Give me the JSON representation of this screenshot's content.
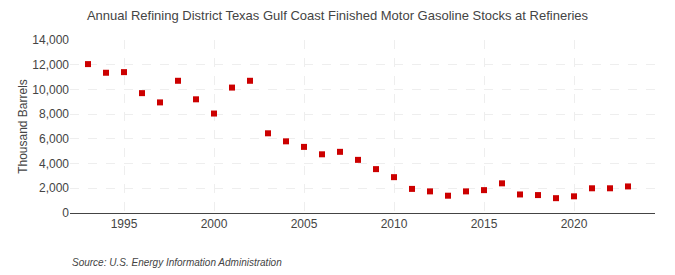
{
  "chart_data": {
    "type": "scatter",
    "title": "Annual Refining District Texas Gulf Coast Finished Motor Gasoline Stocks at Refineries",
    "ylabel": "Thousand Barrels",
    "annotations": [
      "Source: U.S. Energy Information Administration"
    ],
    "x": [
      1993,
      1994,
      1995,
      1996,
      1997,
      1998,
      1999,
      2000,
      2001,
      2002,
      2003,
      2004,
      2005,
      2006,
      2007,
      2008,
      2009,
      2010,
      2011,
      2012,
      2013,
      2014,
      2015,
      2016,
      2017,
      2018,
      2019,
      2020,
      2021,
      2022,
      2023
    ],
    "values": [
      12050,
      11350,
      11400,
      9700,
      8950,
      10700,
      9200,
      8050,
      10150,
      10700,
      6450,
      5800,
      5350,
      4750,
      4950,
      4300,
      3550,
      2900,
      1950,
      1750,
      1400,
      1750,
      1850,
      2400,
      1500,
      1450,
      1200,
      1350,
      2000,
      2000,
      2150
    ],
    "color": "#cc0000",
    "marker": "square",
    "xlim": [
      1992.0,
      2024.5
    ],
    "xticks": [
      1995,
      2000,
      2005,
      2010,
      2015,
      2020
    ],
    "ylim": [
      0,
      14000
    ],
    "yticks": [
      0,
      {
        "value": 2000,
        "label": "2,000"
      },
      {
        "value": 4000,
        "label": "4,000"
      },
      {
        "value": 6000,
        "label": "6,000"
      },
      {
        "value": 8000,
        "label": "8,000"
      },
      {
        "value": 10000,
        "label": "10,000"
      },
      {
        "value": 12000,
        "label": "12,000"
      },
      {
        "value": 14000,
        "label": "14,000"
      }
    ],
    "grid": true
  }
}
